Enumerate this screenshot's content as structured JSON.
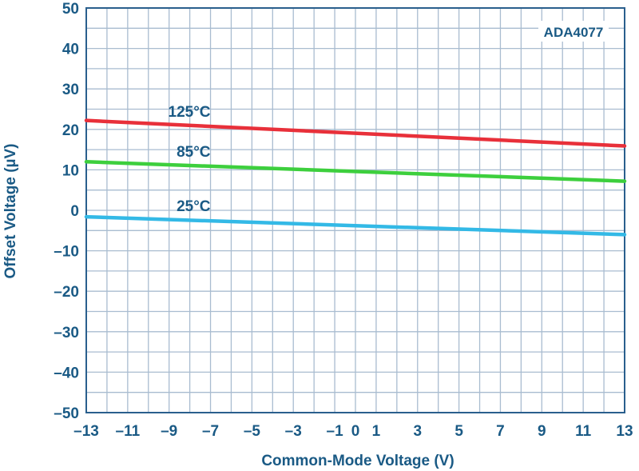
{
  "chart_data": {
    "type": "line",
    "title": "",
    "xlabel": "Common-Mode Voltage (V)",
    "ylabel": "Offset Voltage (µV)",
    "xlim": [
      -13,
      13
    ],
    "ylim": [
      -50,
      50
    ],
    "x_ticks": [
      -13,
      -11,
      -9,
      -7,
      -5,
      -3,
      -1,
      0,
      1,
      3,
      5,
      7,
      9,
      11,
      13
    ],
    "x_tick_labels": [
      "–13",
      "–11",
      "–9",
      "–7",
      "–5",
      "–3",
      "–1",
      "0",
      "1",
      "3",
      "5",
      "7",
      "9",
      "11",
      "13"
    ],
    "y_ticks": [
      50,
      40,
      30,
      20,
      10,
      0,
      -10,
      -20,
      -30,
      -40,
      -50
    ],
    "y_tick_labels": [
      "50",
      "40",
      "30",
      "20",
      "10",
      "0",
      "–10",
      "–20",
      "–30",
      "–40",
      "–50"
    ],
    "grid": true,
    "annotation": "ADA4077",
    "series": [
      {
        "name": "125°C",
        "color": "#e8303a",
        "x": [
          -13,
          13
        ],
        "y": [
          22.2,
          15.9
        ]
      },
      {
        "name": "85°C",
        "color": "#3dcf3d",
        "x": [
          -13,
          13
        ],
        "y": [
          12.0,
          7.2
        ]
      },
      {
        "name": "25°C",
        "color": "#33b9e6",
        "x": [
          -13,
          13
        ],
        "y": [
          -1.6,
          -6.0
        ]
      }
    ]
  },
  "colors": {
    "axis_text": "#1a5a85",
    "grid": "#a9bcd0",
    "frame": "#2a5f8d"
  }
}
